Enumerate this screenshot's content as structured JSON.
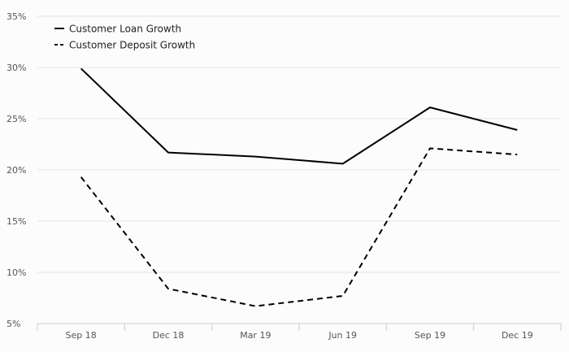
{
  "chart_data": {
    "type": "line",
    "categories": [
      "Sep 18",
      "Dec 18",
      "Mar 19",
      "Jun 19",
      "Sep 19",
      "Dec 19"
    ],
    "series": [
      {
        "name": "Customer Loan Growth",
        "style": "solid",
        "values": [
          29.9,
          21.7,
          21.3,
          20.6,
          26.1,
          23.9
        ]
      },
      {
        "name": "Customer Deposit Growth",
        "style": "dashed",
        "values": [
          19.3,
          8.4,
          6.7,
          7.7,
          22.1,
          21.5
        ]
      }
    ],
    "ylim": [
      5,
      35
    ],
    "yticks": [
      5,
      10,
      15,
      20,
      25,
      30,
      35
    ],
    "ytick_suffix": "%",
    "title": "",
    "xlabel": "",
    "ylabel": "",
    "grid": true,
    "legend_position": "top-left",
    "colors": {
      "line": "#000000",
      "grid": "#e4e4e4",
      "axis": "#c8cbe0",
      "background": "#fcfcfd"
    }
  }
}
